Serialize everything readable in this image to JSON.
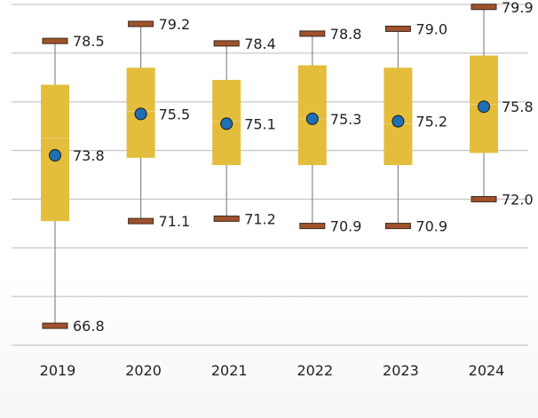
{
  "chart_data": {
    "type": "boxplot",
    "title": "",
    "xlabel": "",
    "ylabel": "",
    "ylim": [
      66,
      80
    ],
    "grid_y": [
      66,
      68,
      70,
      72,
      74,
      76,
      78,
      80
    ],
    "grid": true,
    "categories": [
      "2019",
      "2020",
      "2021",
      "2022",
      "2023",
      "2024"
    ],
    "series": [
      {
        "category": "2019",
        "min": 66.8,
        "q1": 71.1,
        "median": 74.5,
        "q3": 76.7,
        "max": 78.5,
        "mean": 73.8,
        "min_label": "66.8",
        "max_label": "78.5",
        "mean_label": "73.8"
      },
      {
        "category": "2020",
        "min": 71.1,
        "q1": 73.7,
        "median": 75.6,
        "q3": 77.4,
        "max": 79.2,
        "mean": 75.5,
        "min_label": "71.1",
        "max_label": "79.2",
        "mean_label": "75.5"
      },
      {
        "category": "2021",
        "min": 71.2,
        "q1": 73.4,
        "median": 75.2,
        "q3": 76.9,
        "max": 78.4,
        "mean": 75.1,
        "min_label": "71.2",
        "max_label": "78.4",
        "mean_label": "75.1"
      },
      {
        "category": "2022",
        "min": 70.9,
        "q1": 73.4,
        "median": 75.3,
        "q3": 77.5,
        "max": 78.8,
        "mean": 75.3,
        "min_label": "70.9",
        "max_label": "78.8",
        "mean_label": "75.3"
      },
      {
        "category": "2023",
        "min": 70.9,
        "q1": 73.4,
        "median": 75.1,
        "q3": 77.4,
        "max": 79.0,
        "mean": 75.2,
        "min_label": "70.9",
        "max_label": "79.0",
        "mean_label": "75.2"
      },
      {
        "category": "2024",
        "min": 72.0,
        "q1": 73.9,
        "median": 75.9,
        "q3": 77.9,
        "max": 79.9,
        "mean": 75.8,
        "min_label": "72.0",
        "max_label": "79.9",
        "mean_label": "75.8"
      }
    ],
    "colors": {
      "box": "#e3bd3b",
      "cap": "#a0522d",
      "mean": "#1f6fb5",
      "grid": "#c8c8c8",
      "whisker": "#888888"
    }
  }
}
